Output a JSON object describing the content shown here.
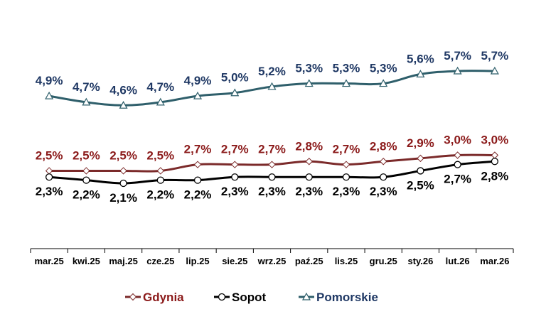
{
  "chart_data": {
    "type": "line",
    "categories": [
      "mar.25",
      "kwi.25",
      "maj.25",
      "cze.25",
      "lip.25",
      "sie.25",
      "wrz.25",
      "paź.25",
      "lis.25",
      "gru.25",
      "sty.26",
      "lut.26",
      "mar.26"
    ],
    "series": [
      {
        "name": "Gdynia",
        "values": [
          2.5,
          2.5,
          2.5,
          2.5,
          2.7,
          2.7,
          2.7,
          2.8,
          2.7,
          2.8,
          2.9,
          3.0,
          3.0
        ],
        "labels": [
          "2,5%",
          "2,5%",
          "2,5%",
          "2,5%",
          "2,7%",
          "2,7%",
          "2,7%",
          "2,8%",
          "2,7%",
          "2,8%",
          "2,9%",
          "3,0%",
          "3,0%"
        ],
        "color": "#7b2a2a",
        "label_color": "#8b1a1a",
        "marker": "diamond",
        "label_position": "above"
      },
      {
        "name": "Sopot",
        "values": [
          2.3,
          2.2,
          2.1,
          2.2,
          2.2,
          2.3,
          2.3,
          2.3,
          2.3,
          2.3,
          2.5,
          2.7,
          2.8
        ],
        "labels": [
          "2,3%",
          "2,2%",
          "2,1%",
          "2,2%",
          "2,2%",
          "2,3%",
          "2,3%",
          "2,3%",
          "2,3%",
          "2,3%",
          "2,5%",
          "2,7%",
          "2,8%"
        ],
        "color": "#000000",
        "label_color": "#000000",
        "marker": "circle",
        "label_position": "below"
      },
      {
        "name": "Pomorskie",
        "values": [
          4.9,
          4.7,
          4.6,
          4.7,
          4.9,
          5.0,
          5.2,
          5.3,
          5.3,
          5.3,
          5.6,
          5.7,
          5.7
        ],
        "labels": [
          "4,9%",
          "4,7%",
          "4,6%",
          "4,7%",
          "4,9%",
          "5,0%",
          "5,2%",
          "5,3%",
          "5,3%",
          "5,3%",
          "5,6%",
          "5,7%",
          "5,7%"
        ],
        "color": "#2f5f6b",
        "label_color": "#1f3864",
        "marker": "triangle",
        "label_position": "above"
      }
    ],
    "ylim": [
      1.5,
      6.5
    ],
    "y_axis_visible": false,
    "grid": false,
    "legend_position": "bottom"
  }
}
